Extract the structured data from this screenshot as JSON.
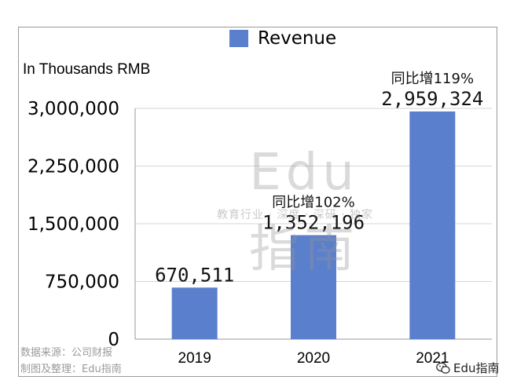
{
  "chart_data": {
    "type": "bar",
    "categories": [
      "2019",
      "2020",
      "2021"
    ],
    "values": [
      670511,
      1352196,
      2959324
    ],
    "value_labels": [
      "670,511",
      "1,352,196",
      "2,959,324"
    ],
    "growth_labels": [
      "",
      "同比增102%",
      "同比增119%"
    ],
    "series": [
      {
        "name": "Revenue",
        "values": [
          670511,
          1352196,
          2959324
        ]
      }
    ],
    "ylabel": "In Thousands RMB",
    "yticks": [
      0,
      750000,
      1500000,
      2250000,
      3000000
    ],
    "ytick_labels": [
      "0",
      "750,000",
      "1,500,000",
      "2,250,000",
      "3,000,000"
    ],
    "ylim": [
      0,
      3000000
    ],
    "grid": true,
    "legend": "top-center",
    "bar_color": "#5a7fcc",
    "grid_color": "#d6d6d6"
  },
  "watermark": {
    "logo_top": "Edu",
    "logo_bottom": "指南",
    "tagline": "教育行业 · 深度 · 深研 · 独家"
  },
  "footer": {
    "source": "数据来源：公司财报",
    "credit": "制图及整理：Edu指南",
    "brand": "Edu指南",
    "brand_icon": "wechat-icon"
  }
}
